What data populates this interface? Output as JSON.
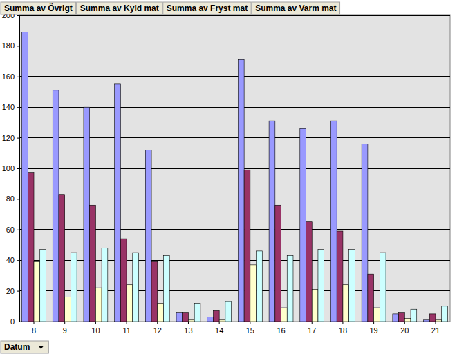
{
  "chart_data": {
    "type": "bar",
    "categories": [
      "8",
      "9",
      "10",
      "11",
      "12",
      "13",
      "14",
      "15",
      "16",
      "17",
      "18",
      "19",
      "20",
      "21"
    ],
    "series": [
      {
        "name": "Summa av Övrigt",
        "color": "#9999ff",
        "values": [
          189,
          151,
          140,
          155,
          112,
          6,
          3,
          171,
          131,
          126,
          131,
          116,
          5,
          1
        ]
      },
      {
        "name": "Summa av Kyld mat",
        "color": "#993366",
        "values": [
          97,
          83,
          76,
          54,
          39,
          6,
          7,
          99,
          76,
          65,
          59,
          31,
          6,
          5
        ]
      },
      {
        "name": "Summa av Fryst mat",
        "color": "#ffffcc",
        "values": [
          39,
          16,
          22,
          24,
          12,
          1,
          1,
          37,
          9,
          21,
          24,
          9,
          2,
          1
        ]
      },
      {
        "name": "Summa av Varm mat",
        "color": "#ccffff",
        "values": [
          47,
          45,
          48,
          45,
          43,
          12,
          13,
          46,
          43,
          47,
          47,
          45,
          8,
          10
        ]
      }
    ],
    "x_label": "Datum",
    "ylim": [
      0,
      200
    ],
    "yticks": [
      0,
      20,
      40,
      60,
      80,
      100,
      120,
      140,
      160,
      180,
      200
    ],
    "grid": true,
    "legend": "top"
  }
}
